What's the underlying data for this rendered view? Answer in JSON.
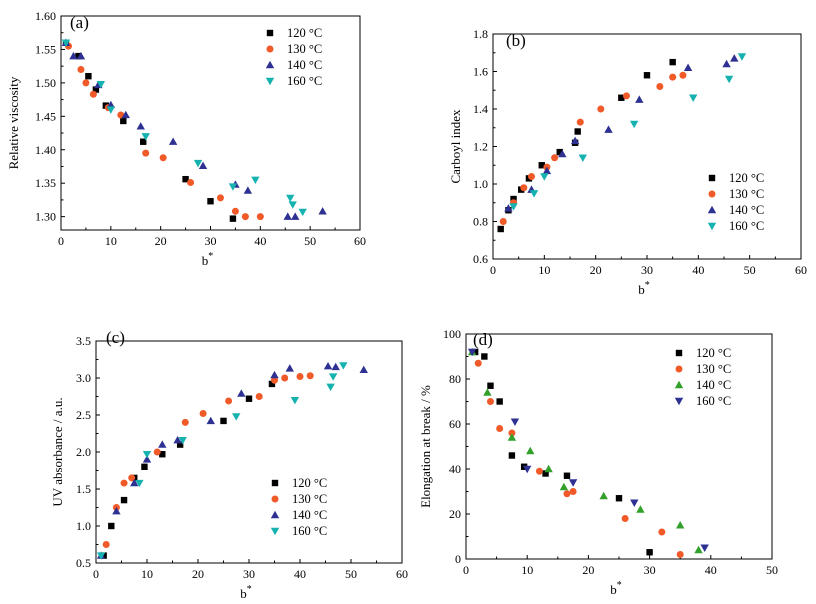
{
  "colors": {
    "120": "#000000",
    "130": "#f05a28",
    "140": "#2e3192",
    "160": "#16b2b0",
    "140_d": "#33a02c",
    "160_d": "#2e3192"
  },
  "chart_data": [
    {
      "panel": "(a)",
      "type": "scatter",
      "xlabel": "b*",
      "ylabel": "Relative viscosity",
      "xlim": [
        0,
        60
      ],
      "ylim": [
        1.28,
        1.6
      ],
      "xticks": [
        0,
        10,
        20,
        30,
        40,
        50,
        60
      ],
      "yticks": [
        1.3,
        1.35,
        1.4,
        1.45,
        1.5,
        1.55,
        1.6
      ],
      "ytick_labels": [
        "1.30",
        "1.35",
        "1.40",
        "1.45",
        "1.50",
        "1.55",
        "1.60"
      ],
      "legend_position": "top-right",
      "series": [
        {
          "name": "120 °C",
          "marker": "square",
          "color_key": "120",
          "x": [
            1,
            3.5,
            5.5,
            7,
            9,
            12.5,
            16.5,
            25,
            30,
            34.5
          ],
          "y": [
            1.56,
            1.54,
            1.51,
            1.49,
            1.466,
            1.443,
            1.412,
            1.356,
            1.323,
            1.297
          ]
        },
        {
          "name": "130 °C",
          "marker": "circle",
          "color_key": "130",
          "x": [
            1.5,
            4,
            5,
            6.5,
            9.5,
            12,
            17,
            20.5,
            26,
            32,
            35,
            37,
            40
          ],
          "y": [
            1.555,
            1.52,
            1.5,
            1.483,
            1.463,
            1.452,
            1.395,
            1.388,
            1.351,
            1.328,
            1.308,
            1.3,
            1.3
          ]
        },
        {
          "name": "140 °C",
          "marker": "triangle-up",
          "color_key": "140",
          "x": [
            1,
            2.5,
            4,
            7.5,
            10,
            13,
            16,
            22.5,
            28.5,
            35,
            37.5,
            45.5,
            47,
            52.5
          ],
          "y": [
            1.56,
            1.54,
            1.54,
            1.497,
            1.467,
            1.452,
            1.435,
            1.412,
            1.376,
            1.348,
            1.339,
            1.3,
            1.3,
            1.308
          ]
        },
        {
          "name": "160 °C",
          "marker": "triangle-down",
          "color_key": "160",
          "x": [
            1,
            8,
            10,
            17,
            27.5,
            34.5,
            39,
            46,
            46.5,
            48.5
          ],
          "y": [
            1.56,
            1.498,
            1.46,
            1.42,
            1.38,
            1.345,
            1.355,
            1.328,
            1.318,
            1.307
          ]
        }
      ]
    },
    {
      "panel": "(b)",
      "type": "scatter",
      "xlabel": "b*",
      "ylabel": "Carboyl index",
      "xlim": [
        0,
        60
      ],
      "ylim": [
        0.6,
        1.8
      ],
      "xticks": [
        0,
        10,
        20,
        30,
        40,
        50,
        60
      ],
      "yticks": [
        0.6,
        0.8,
        1.0,
        1.2,
        1.4,
        1.6,
        1.8
      ],
      "ytick_labels": [
        "0.6",
        "0.8",
        "1.0",
        "1.2",
        "1.4",
        "1.6",
        "1.8"
      ],
      "legend_position": "bottom-right",
      "series": [
        {
          "name": "120 °C",
          "marker": "square",
          "color_key": "120",
          "x": [
            1.5,
            3,
            4,
            5.5,
            7,
            9.5,
            13,
            16,
            16.5,
            25,
            30,
            35
          ],
          "y": [
            0.76,
            0.86,
            0.92,
            0.97,
            1.03,
            1.1,
            1.17,
            1.22,
            1.28,
            1.46,
            1.58,
            1.65
          ]
        },
        {
          "name": "130 °C",
          "marker": "circle",
          "color_key": "130",
          "x": [
            2,
            4,
            6,
            7.5,
            10.5,
            12,
            17,
            21,
            26,
            32.5,
            35,
            37
          ],
          "y": [
            0.8,
            0.9,
            0.98,
            1.04,
            1.09,
            1.14,
            1.33,
            1.4,
            1.47,
            1.52,
            1.57,
            1.58
          ]
        },
        {
          "name": "140 °C",
          "marker": "triangle-up",
          "color_key": "140",
          "x": [
            3,
            7.5,
            10.5,
            13.5,
            16,
            22.5,
            28.5,
            38,
            45.5,
            47
          ],
          "y": [
            0.87,
            0.97,
            1.07,
            1.16,
            1.23,
            1.29,
            1.45,
            1.62,
            1.64,
            1.67
          ]
        },
        {
          "name": "160 °C",
          "marker": "triangle-down",
          "color_key": "160",
          "x": [
            4,
            8,
            10,
            17.5,
            27.5,
            39,
            46,
            48.5
          ],
          "y": [
            0.88,
            0.95,
            1.04,
            1.14,
            1.32,
            1.46,
            1.56,
            1.68
          ]
        }
      ]
    },
    {
      "panel": "(c)",
      "type": "scatter",
      "xlabel": "b*",
      "ylabel": "UV absorbance / a.u.",
      "xlim": [
        0,
        60
      ],
      "ylim": [
        0.5,
        3.5
      ],
      "xticks": [
        0,
        10,
        20,
        30,
        40,
        50,
        60
      ],
      "yticks": [
        0.5,
        1.0,
        1.5,
        2.0,
        2.5,
        3.0,
        3.5
      ],
      "ytick_labels": [
        "0.5",
        "1.0",
        "1.5",
        "2.0",
        "2.5",
        "3.0",
        "3.5"
      ],
      "legend_position": "bottom-right",
      "series": [
        {
          "name": "120 °C",
          "marker": "square",
          "color_key": "120",
          "x": [
            1.5,
            3,
            5.5,
            7.5,
            9.5,
            13,
            16.5,
            25,
            30,
            34.5
          ],
          "y": [
            0.6,
            1.0,
            1.35,
            1.65,
            1.8,
            1.97,
            2.1,
            2.42,
            2.72,
            2.92
          ]
        },
        {
          "name": "130 °C",
          "marker": "circle",
          "color_key": "130",
          "x": [
            2,
            4,
            5.5,
            7,
            12,
            17.5,
            21,
            26,
            32,
            35,
            37,
            40,
            42
          ],
          "y": [
            0.75,
            1.25,
            1.58,
            1.65,
            2.0,
            2.4,
            2.52,
            2.69,
            2.75,
            2.97,
            3.0,
            3.02,
            3.03
          ]
        },
        {
          "name": "140 °C",
          "marker": "triangle-up",
          "color_key": "140",
          "x": [
            1,
            4,
            7.5,
            10,
            13,
            16,
            22.5,
            28.5,
            35,
            38,
            45.5,
            47,
            52.5
          ],
          "y": [
            0.6,
            1.2,
            1.58,
            1.9,
            2.1,
            2.16,
            2.42,
            2.79,
            3.04,
            3.13,
            3.16,
            3.15,
            3.11
          ]
        },
        {
          "name": "160 °C",
          "marker": "triangle-down",
          "color_key": "160",
          "x": [
            1,
            8.5,
            10,
            17,
            27.5,
            39,
            46,
            46.5,
            48.5
          ],
          "y": [
            0.6,
            1.58,
            1.97,
            2.16,
            2.48,
            2.7,
            2.88,
            3.02,
            3.17
          ]
        }
      ]
    },
    {
      "panel": "(d)",
      "type": "scatter",
      "xlabel": "b*",
      "ylabel": "Elongation at break / %",
      "xlim": [
        0,
        50
      ],
      "ylim": [
        0,
        100
      ],
      "xticks": [
        0,
        10,
        20,
        30,
        40,
        50
      ],
      "yticks": [
        0,
        20,
        40,
        60,
        80,
        100
      ],
      "ytick_labels": [
        "0",
        "20",
        "40",
        "60",
        "80",
        "100"
      ],
      "legend_position": "top-right",
      "series": [
        {
          "name": "120 °C",
          "marker": "square",
          "color_key": "120",
          "x": [
            1.5,
            3,
            4,
            5.5,
            7.5,
            9.5,
            13,
            16.5,
            25,
            30
          ],
          "y": [
            92,
            90,
            77,
            70,
            46,
            41,
            38,
            37,
            27,
            3
          ]
        },
        {
          "name": "130 °C",
          "marker": "circle",
          "color_key": "130",
          "x": [
            2,
            4,
            5.5,
            7.5,
            12,
            16.5,
            17.5,
            26,
            32,
            35
          ],
          "y": [
            87,
            70,
            58,
            56,
            39,
            29,
            30,
            18,
            12,
            2
          ]
        },
        {
          "name": "140 °C",
          "marker": "triangle-up",
          "color_key": "140_d",
          "x": [
            1,
            3.5,
            7.5,
            10.5,
            13.5,
            16,
            22.5,
            28.5,
            35,
            38
          ],
          "y": [
            92,
            74,
            54,
            48,
            40,
            32,
            28,
            22,
            15,
            4
          ]
        },
        {
          "name": "160 °C",
          "marker": "triangle-down",
          "color_key": "160_d",
          "x": [
            1,
            8,
            10,
            17.5,
            27.5,
            39
          ],
          "y": [
            92,
            61,
            40,
            34,
            25,
            5
          ]
        }
      ]
    }
  ]
}
